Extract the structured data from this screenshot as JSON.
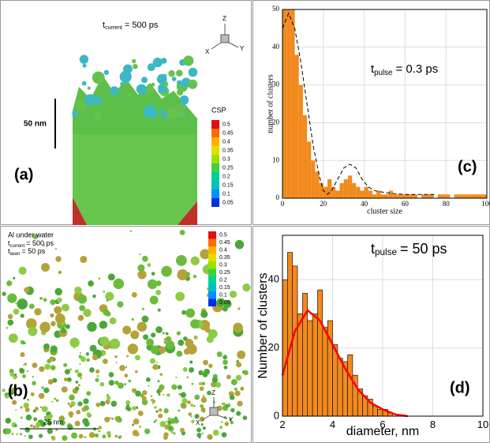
{
  "chart_data": [
    {
      "type": "histogram",
      "ylabel": "number of clusters",
      "xlabel": "cluster size",
      "annotation": {
        "t": "t",
        "sub": "pulse",
        "rest": "= 0.3 ps"
      },
      "label": "(c)",
      "bins": [
        0,
        2,
        4,
        6,
        8,
        10,
        12,
        14,
        16,
        18,
        20,
        22,
        24,
        26,
        28,
        30,
        32,
        34,
        36,
        38,
        40,
        42,
        44,
        46,
        48,
        50,
        52,
        54,
        56,
        58,
        60,
        62,
        64,
        66,
        68,
        70,
        72,
        74,
        76,
        78,
        80,
        82,
        84,
        86,
        88,
        90,
        92,
        94,
        96,
        98,
        100
      ],
      "values": [
        50,
        50,
        50,
        38,
        30,
        22,
        15,
        10,
        7,
        4,
        3,
        5,
        3,
        2,
        4,
        5,
        6,
        4,
        3,
        2,
        3,
        2,
        1,
        2,
        1,
        1,
        2,
        1,
        1,
        1,
        1,
        1,
        1,
        0,
        1,
        1,
        1,
        0,
        1,
        1,
        1,
        0,
        1,
        1,
        1,
        1,
        1,
        1,
        1,
        1
      ],
      "color": "#f28a1e",
      "xlim": [
        0,
        100
      ],
      "ylim": [
        0,
        50
      ],
      "xticks": [
        0,
        20,
        40,
        60,
        80,
        100
      ],
      "yticks": [
        0,
        10,
        20,
        30,
        40,
        50
      ],
      "grid": true,
      "fit": {
        "x": [
          0,
          3,
          6,
          9,
          12,
          15,
          18,
          20,
          22,
          24,
          27,
          30,
          33,
          36,
          39,
          42,
          45,
          50,
          55,
          60,
          65,
          70,
          75
        ],
        "values": [
          45,
          49,
          45,
          36,
          25,
          14,
          6,
          2,
          1,
          2,
          5,
          8,
          9,
          8,
          5,
          3,
          2,
          1.5,
          1.2,
          1,
          1,
          1,
          1
        ],
        "color": "#000000",
        "style": "dashed"
      }
    },
    {
      "type": "histogram",
      "ylabel": "Number of clusters",
      "xlabel": "diameter, nm",
      "annotation": {
        "t": "t",
        "sub": "pulse",
        "rest": "= 50 ps"
      },
      "label": "(d)",
      "bins": [
        2.0,
        2.2,
        2.4,
        2.6,
        2.8,
        3.0,
        3.2,
        3.4,
        3.6,
        3.8,
        4.0,
        4.2,
        4.4,
        4.6,
        4.8,
        5.0,
        5.2,
        5.4,
        5.6,
        5.8,
        6.0,
        6.2,
        6.4
      ],
      "values": [
        40,
        48,
        44,
        30,
        36,
        28,
        30,
        37,
        26,
        28,
        21,
        17,
        16,
        18,
        12,
        8,
        6,
        5,
        3,
        2,
        2,
        1
      ],
      "color": "#f28a1e",
      "xlim": [
        2,
        10
      ],
      "ylim": [
        0,
        53
      ],
      "xticks": [
        2,
        4,
        6,
        8,
        10
      ],
      "yticks": [
        0,
        20,
        40
      ],
      "grid": true,
      "fit": {
        "x": [
          2.0,
          2.5,
          3.0,
          3.5,
          4.0,
          4.5,
          5.0,
          5.5,
          6.0,
          6.5,
          7.0
        ],
        "values": [
          12,
          25,
          31,
          28,
          21,
          14,
          8,
          4,
          2,
          0.5,
          0
        ],
        "color": "#ff0000",
        "style": "solid"
      }
    }
  ],
  "panels": {
    "a": {
      "time": {
        "t": "t",
        "sub": "current",
        "rest": "= 500 ps"
      },
      "scale": "50 nm",
      "colorbar_title": "CSP",
      "colorbar_labels": [
        "0.5",
        "0.45",
        "0.4",
        "0.35",
        "0.3",
        "0.25",
        "0.2",
        "0.15",
        "0.1",
        "0.05"
      ],
      "label": "(a)",
      "axes": [
        "Z",
        "Y",
        "X"
      ]
    },
    "b": {
      "title": "Al under water",
      "time": {
        "t": "t",
        "sub": "current",
        "rest": "= 500 ps"
      },
      "laser": {
        "t": "t",
        "sub": "laser",
        "rest": "= 50 ps"
      },
      "colorbar_labels": [
        "0.5",
        "0.45",
        "0.4",
        "0.35",
        "0.3",
        "0.25",
        "0.2",
        "0.15",
        "0.1",
        "0.05"
      ],
      "scale": "25 nm",
      "label": "(b)",
      "axes": [
        "Z",
        "X",
        "Y"
      ]
    }
  }
}
